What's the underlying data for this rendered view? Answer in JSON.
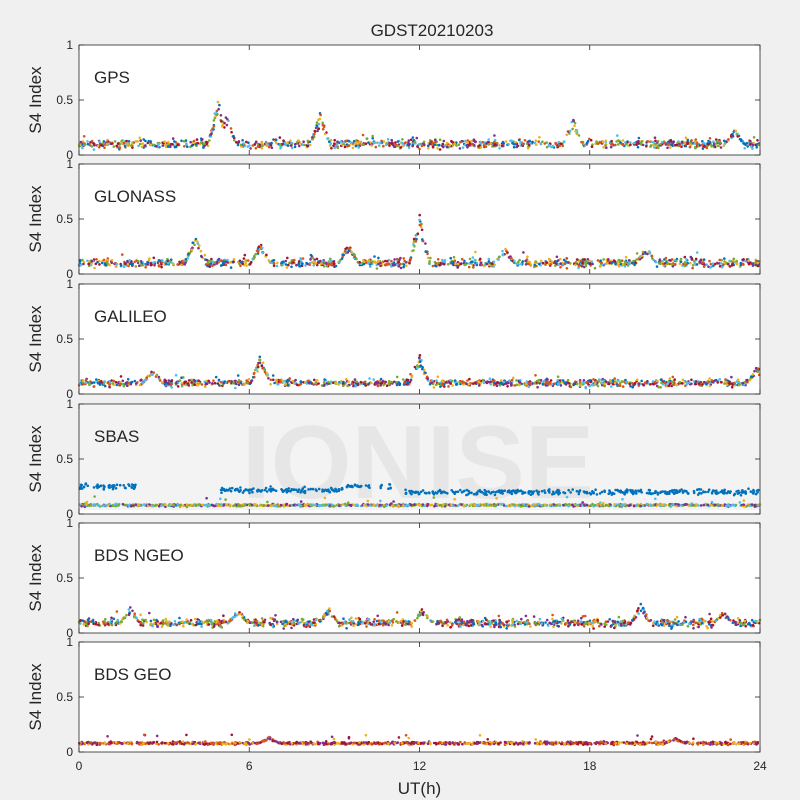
{
  "figure": {
    "title": "GDST20210203",
    "watermark": "IONISE",
    "background_color": "#f0f0f0",
    "axes_color": "#ffffff",
    "watermark_color": "#e6e6e6"
  },
  "chart_data": [
    {
      "type": "scatter",
      "panel_label": "GPS",
      "ylabel": "S4 Index",
      "ylim": [
        0,
        1
      ],
      "yticks": [
        "0",
        "0.5",
        "1"
      ],
      "xlim": [
        0,
        24
      ],
      "grid": false,
      "baseline": 0.1,
      "spread": 0.035,
      "palette": [
        "#0072bd",
        "#d95319",
        "#edb120",
        "#7e2f8e",
        "#77ac30",
        "#4dbeee",
        "#a2142f"
      ],
      "peaks": [
        [
          4.9,
          0.53
        ],
        [
          5.2,
          0.36
        ],
        [
          8.5,
          0.39
        ],
        [
          17.4,
          0.35
        ],
        [
          23.1,
          0.24
        ]
      ],
      "series": []
    },
    {
      "type": "scatter",
      "panel_label": "GLONASS",
      "ylabel": "S4 Index",
      "ylim": [
        0,
        1
      ],
      "yticks": [
        "0",
        "0.5",
        "1"
      ],
      "xlim": [
        0,
        24
      ],
      "grid": false,
      "baseline": 0.1,
      "spread": 0.035,
      "palette": [
        "#0072bd",
        "#d95319",
        "#edb120",
        "#7e2f8e",
        "#77ac30",
        "#4dbeee",
        "#a2142f"
      ],
      "peaks": [
        [
          4.1,
          0.38
        ],
        [
          6.4,
          0.28
        ],
        [
          9.5,
          0.29
        ],
        [
          12.0,
          0.58
        ],
        [
          15.0,
          0.24
        ],
        [
          20.0,
          0.26
        ]
      ],
      "series": []
    },
    {
      "type": "scatter",
      "panel_label": "GALILEO",
      "ylabel": "S4 Index",
      "ylim": [
        0,
        1
      ],
      "yticks": [
        "0",
        "0.5",
        "1"
      ],
      "xlim": [
        0,
        24
      ],
      "grid": false,
      "baseline": 0.1,
      "spread": 0.03,
      "palette": [
        "#0072bd",
        "#d95319",
        "#edb120",
        "#7e2f8e",
        "#77ac30",
        "#4dbeee",
        "#a2142f"
      ],
      "peaks": [
        [
          2.6,
          0.24
        ],
        [
          6.4,
          0.36
        ],
        [
          12.0,
          0.37
        ],
        [
          23.9,
          0.26
        ]
      ],
      "series": []
    },
    {
      "type": "scatter",
      "panel_label": "SBAS",
      "ylabel": "S4 Index",
      "ylim": [
        0,
        1
      ],
      "yticks": [
        "0",
        "0.5",
        "1"
      ],
      "xlim": [
        0,
        24
      ],
      "grid": false,
      "baseline": 0.08,
      "spread": 0.01,
      "palette": [
        "#7e2f8e",
        "#77ac30",
        "#4dbeee",
        "#edb120"
      ],
      "peaks": [],
      "series": [
        {
          "color": "#0072bd",
          "segments": [
            [
              0,
              2.0,
              0.25
            ],
            [
              5.0,
              9.3,
              0.22
            ],
            [
              9.4,
              10.3,
              0.25
            ],
            [
              10.6,
              11.0,
              0.25
            ],
            [
              11.5,
              24.0,
              0.2
            ]
          ]
        }
      ]
    },
    {
      "type": "scatter",
      "panel_label": "BDS NGEO",
      "ylabel": "S4 Index",
      "ylim": [
        0,
        1
      ],
      "yticks": [
        "0",
        "0.5",
        "1"
      ],
      "xlim": [
        0,
        24
      ],
      "grid": false,
      "baseline": 0.09,
      "spread": 0.035,
      "palette": [
        "#0072bd",
        "#d95319",
        "#edb120",
        "#7e2f8e",
        "#77ac30",
        "#4dbeee",
        "#a2142f"
      ],
      "peaks": [
        [
          1.8,
          0.24
        ],
        [
          5.6,
          0.23
        ],
        [
          8.8,
          0.24
        ],
        [
          12.1,
          0.23
        ],
        [
          19.8,
          0.27
        ],
        [
          22.7,
          0.2
        ]
      ],
      "series": []
    },
    {
      "type": "scatter",
      "panel_label": "BDS GEO",
      "ylabel": "S4 Index",
      "ylim": [
        0,
        1
      ],
      "yticks": [
        "0",
        "0.5",
        "1"
      ],
      "xlim": [
        0,
        24
      ],
      "grid": false,
      "baseline": 0.08,
      "spread": 0.012,
      "palette": [
        "#7e2f8e",
        "#d95319",
        "#edb120",
        "#a2142f"
      ],
      "peaks": [
        [
          6.7,
          0.14
        ],
        [
          21.0,
          0.13
        ]
      ],
      "series": [],
      "xlabel": "UT(h)",
      "xticks": [
        "0",
        "6",
        "12",
        "18",
        "24"
      ]
    }
  ]
}
